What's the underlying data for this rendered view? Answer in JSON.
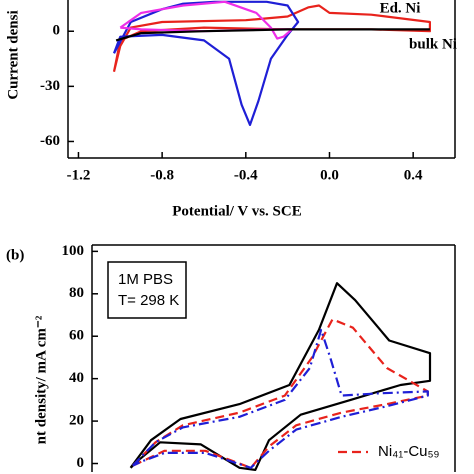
{
  "chart_data": [
    {
      "type": "line",
      "ylabel": "Current densi",
      "xlabel": "Potential/ V vs. SCE",
      "xlim": [
        -1.25,
        0.6
      ],
      "xticks": [
        -1.2,
        -0.8,
        -0.4,
        {
          "value": 0,
          "label": "0.0"
        },
        0.4
      ],
      "ylim": [
        -69,
        17
      ],
      "yticks": [
        0,
        -30,
        -60
      ],
      "series": [
        {
          "name": "Ed. Ni",
          "color": "#e8231c",
          "dash": "solid",
          "x": [
            -1.03,
            -1.0,
            -0.95,
            -0.8,
            -0.4,
            -0.2,
            -0.1,
            -0.05,
            0.0,
            0.2,
            0.48,
            0.48,
            0.2,
            -0.2,
            -0.6,
            -0.9,
            -1.0,
            -1.03
          ],
          "values": [
            -22,
            -8,
            2,
            5,
            6,
            8,
            13,
            14,
            10,
            9,
            5,
            0,
            1,
            1,
            2,
            0,
            -5,
            -22
          ]
        },
        {
          "color": "#1f1fd6",
          "dash": "solid",
          "x": [
            -1.03,
            -0.95,
            -0.8,
            -0.7,
            -0.55,
            -0.3,
            -0.2,
            -0.15,
            -0.2,
            -0.28,
            -0.34,
            -0.38,
            -0.42,
            -0.48,
            -0.6,
            -0.8,
            -1.0,
            -1.03
          ],
          "values": [
            -12,
            5,
            12,
            15,
            16,
            16,
            14,
            5,
            -2,
            -15,
            -38,
            -51,
            -40,
            -15,
            -5,
            -2,
            -3,
            -12
          ]
        },
        {
          "color": "#ee2ee8",
          "dash": "solid",
          "x": [
            -1.0,
            -0.9,
            -0.7,
            -0.5,
            -0.35,
            -0.28,
            -0.25,
            -0.22,
            -0.18,
            -0.3,
            -0.6,
            -0.9,
            -1.0
          ],
          "values": [
            2,
            10,
            14,
            16,
            10,
            2,
            -4,
            -3,
            1,
            1,
            0,
            1,
            2
          ]
        },
        {
          "name": "bulk Ni",
          "color": "#000000",
          "dash": "solid",
          "x": [
            -1.02,
            -0.9,
            -0.6,
            -0.2,
            0.2,
            0.48
          ],
          "values": [
            -5,
            -1,
            0,
            1,
            1,
            1
          ]
        }
      ]
    },
    {
      "type": "line",
      "panel_label": "(b)",
      "ylabel": "nt density/ mA cm⁻²",
      "annotation": [
        "1M PBS",
        "T= 298 K"
      ],
      "xlim": [
        -1.0,
        0.6
      ],
      "ylim": [
        -4,
        103
      ],
      "yticks": [
        0,
        20,
        40,
        60,
        80,
        100
      ],
      "series": [
        {
          "color": "#000000",
          "dash": "solid",
          "x": [
            -0.83,
            -0.74,
            -0.61,
            -0.35,
            -0.13,
            0.0,
            0.08,
            0.16,
            0.31,
            0.49,
            0.49,
            0.36,
            0.14,
            -0.08,
            -0.22,
            -0.28,
            -0.35,
            -0.52,
            -0.7,
            -0.79,
            -0.83
          ],
          "values": [
            -2,
            11,
            21,
            28,
            37,
            63,
            85,
            77,
            58,
            52,
            39,
            37,
            30,
            23,
            11,
            -3,
            -2,
            9,
            10,
            2,
            -2
          ]
        },
        {
          "name": "Ni₄₁-Cu₅₉",
          "color": "#e8231c",
          "dash": "dashed",
          "x": [
            -0.82,
            -0.72,
            -0.6,
            -0.35,
            -0.15,
            -0.03,
            0.06,
            0.15,
            0.3,
            0.48,
            0.48,
            0.3,
            0.1,
            -0.1,
            -0.22,
            -0.3,
            -0.5,
            -0.68,
            -0.78,
            -0.82
          ],
          "values": [
            -1,
            10,
            18,
            24,
            32,
            50,
            68,
            64,
            45,
            34,
            32,
            28,
            24,
            18,
            8,
            -2,
            6,
            6,
            1,
            -1
          ]
        },
        {
          "color": "#1f1fd6",
          "dash": "dashdot",
          "x": [
            -0.82,
            -0.72,
            -0.6,
            -0.35,
            -0.15,
            -0.04,
            0.01,
            0.05,
            0.1,
            0.25,
            0.48,
            0.48,
            0.3,
            0.1,
            -0.1,
            -0.22,
            -0.3,
            -0.5,
            -0.68,
            -0.78,
            -0.82
          ],
          "values": [
            -1,
            10,
            17,
            22,
            30,
            45,
            63,
            50,
            32,
            33,
            34,
            32,
            27,
            22,
            16,
            6,
            -2,
            5,
            5,
            1,
            -1
          ]
        }
      ]
    }
  ]
}
